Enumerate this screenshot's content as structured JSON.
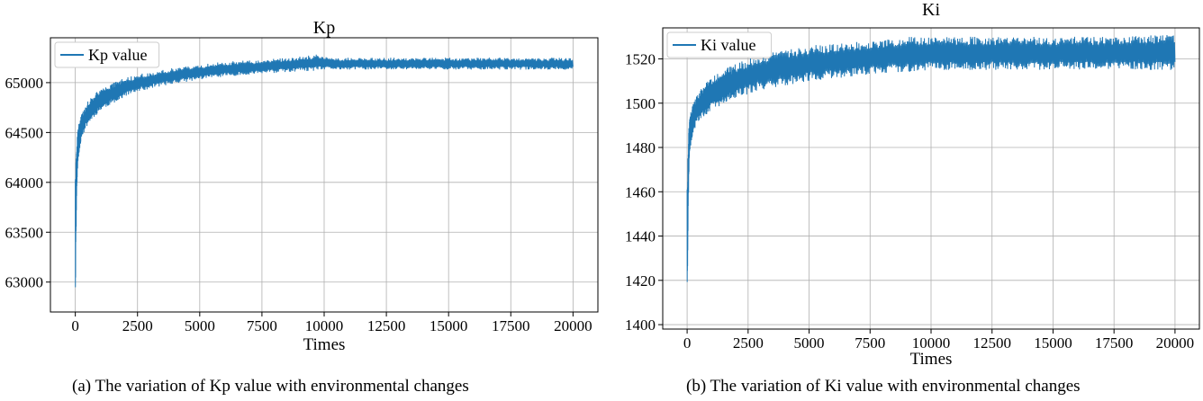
{
  "chart_data": [
    {
      "type": "line",
      "title": "Kp",
      "xlabel": "Times",
      "ylabel": "",
      "xlim": [
        -1000,
        21000
      ],
      "ylim": [
        62700,
        65450
      ],
      "xticks": [
        0,
        2500,
        5000,
        7500,
        10000,
        12500,
        15000,
        17500,
        20000
      ],
      "xtick_labels": [
        "0",
        "2500",
        "5000",
        "7500",
        "10000",
        "12500",
        "15000",
        "17500",
        "20000"
      ],
      "yticks": [
        63000,
        63500,
        64000,
        64500,
        65000
      ],
      "ytick_labels": [
        "63000",
        "63500",
        "64000",
        "64500",
        "65000"
      ],
      "grid": true,
      "legend_position": "top-left",
      "series": [
        {
          "name": "Kp value",
          "color": "#1f77b4",
          "envelope": [
            {
              "x": 0,
              "low": 62780,
              "high": 64100
            },
            {
              "x": 50,
              "low": 63800,
              "high": 64350
            },
            {
              "x": 100,
              "low": 64200,
              "high": 64550
            },
            {
              "x": 250,
              "low": 64450,
              "high": 64680
            },
            {
              "x": 500,
              "low": 64580,
              "high": 64820
            },
            {
              "x": 1000,
              "low": 64720,
              "high": 64940
            },
            {
              "x": 2000,
              "low": 64860,
              "high": 65050
            },
            {
              "x": 3000,
              "low": 64940,
              "high": 65110
            },
            {
              "x": 4000,
              "low": 64990,
              "high": 65150
            },
            {
              "x": 5000,
              "low": 65030,
              "high": 65180
            },
            {
              "x": 6000,
              "low": 65060,
              "high": 65210
            },
            {
              "x": 7500,
              "low": 65090,
              "high": 65230
            },
            {
              "x": 9000,
              "low": 65110,
              "high": 65260
            },
            {
              "x": 9800,
              "low": 65120,
              "high": 65290
            },
            {
              "x": 10200,
              "low": 65130,
              "high": 65250
            },
            {
              "x": 12500,
              "low": 65130,
              "high": 65250
            },
            {
              "x": 15000,
              "low": 65130,
              "high": 65250
            },
            {
              "x": 17500,
              "low": 65130,
              "high": 65250
            },
            {
              "x": 20000,
              "low": 65130,
              "high": 65250
            }
          ]
        }
      ]
    },
    {
      "type": "line",
      "title": "Ki",
      "xlabel": "Times",
      "ylabel": "",
      "xlim": [
        -1000,
        21000
      ],
      "ylim": [
        1398,
        1534
      ],
      "xticks": [
        0,
        2500,
        5000,
        7500,
        10000,
        12500,
        15000,
        17500,
        20000
      ],
      "xtick_labels": [
        "0",
        "2500",
        "5000",
        "7500",
        "10000",
        "12500",
        "15000",
        "17500",
        "20000"
      ],
      "yticks": [
        1400,
        1420,
        1440,
        1460,
        1480,
        1500,
        1520
      ],
      "ytick_labels": [
        "1400",
        "1420",
        "1440",
        "1460",
        "1480",
        "1500",
        "1520"
      ],
      "grid": true,
      "legend_position": "top-left",
      "series": [
        {
          "name": "Ki value",
          "color": "#1f77b4",
          "envelope": [
            {
              "x": 0,
              "low": 1401,
              "high": 1465
            },
            {
              "x": 50,
              "low": 1455,
              "high": 1485
            },
            {
              "x": 100,
              "low": 1478,
              "high": 1494
            },
            {
              "x": 250,
              "low": 1487,
              "high": 1500
            },
            {
              "x": 500,
              "low": 1492,
              "high": 1506
            },
            {
              "x": 1000,
              "low": 1497,
              "high": 1512
            },
            {
              "x": 2000,
              "low": 1502,
              "high": 1518
            },
            {
              "x": 3000,
              "low": 1506,
              "high": 1522
            },
            {
              "x": 4000,
              "low": 1508,
              "high": 1524
            },
            {
              "x": 5000,
              "low": 1510,
              "high": 1526
            },
            {
              "x": 6000,
              "low": 1511,
              "high": 1527
            },
            {
              "x": 7500,
              "low": 1513,
              "high": 1528
            },
            {
              "x": 9000,
              "low": 1514,
              "high": 1530
            },
            {
              "x": 10000,
              "low": 1515,
              "high": 1530
            },
            {
              "x": 12500,
              "low": 1515,
              "high": 1530
            },
            {
              "x": 15000,
              "low": 1515,
              "high": 1530
            },
            {
              "x": 17500,
              "low": 1515,
              "high": 1530
            },
            {
              "x": 20000,
              "low": 1515,
              "high": 1531
            }
          ]
        }
      ]
    }
  ],
  "captions": {
    "a": "(a) The variation of Kp value with environmental changes",
    "b": "(b) The variation of Ki value with environmental changes"
  },
  "colors": {
    "series": "#1f77b4",
    "grid": "#b0b0b0",
    "axis": "#000000"
  }
}
